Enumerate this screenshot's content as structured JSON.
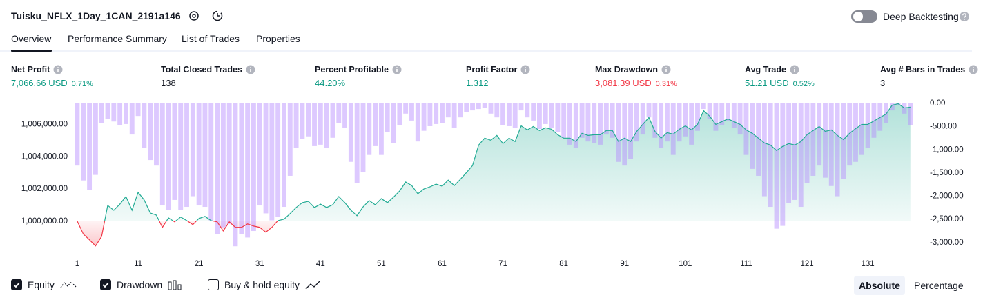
{
  "header": {
    "title": "Tuisku_NFLX_1Day_1CAN_2191a146",
    "deep_backtesting": "Deep Backtesting"
  },
  "tabs": [
    "Overview",
    "Performance Summary",
    "List of Trades",
    "Properties"
  ],
  "metrics": [
    {
      "label": "Net Profit",
      "value": "7,066.66 USD",
      "percent": "0.71%",
      "color": "#089981"
    },
    {
      "label": "Total Closed Trades",
      "value": "138",
      "color": "#131722"
    },
    {
      "label": "Percent Profitable",
      "value": "44.20%",
      "color": "#089981"
    },
    {
      "label": "Profit Factor",
      "value": "1.312",
      "color": "#089981"
    },
    {
      "label": "Max Drawdown",
      "value": "3,081.39 USD",
      "percent": "0.31%",
      "color": "#f23645"
    },
    {
      "label": "Avg Trade",
      "value": "51.21 USD",
      "percent": "0.52%",
      "color": "#089981"
    },
    {
      "label": "Avg # Bars in Trades",
      "value": "3",
      "color": "#131722"
    }
  ],
  "chart_data": {
    "type": "combo",
    "x": [
      1,
      2,
      3,
      4,
      5,
      6,
      7,
      8,
      9,
      10,
      11,
      12,
      13,
      14,
      15,
      16,
      17,
      18,
      19,
      20,
      21,
      22,
      23,
      24,
      25,
      26,
      27,
      28,
      29,
      30,
      31,
      32,
      33,
      34,
      35,
      36,
      37,
      38,
      39,
      40,
      41,
      42,
      43,
      44,
      45,
      46,
      47,
      48,
      49,
      50,
      51,
      52,
      53,
      54,
      55,
      56,
      57,
      58,
      59,
      60,
      61,
      62,
      63,
      64,
      65,
      66,
      67,
      68,
      69,
      70,
      71,
      72,
      73,
      74,
      75,
      76,
      77,
      78,
      79,
      80,
      81,
      82,
      83,
      84,
      85,
      86,
      87,
      88,
      89,
      90,
      91,
      92,
      93,
      94,
      95,
      96,
      97,
      98,
      99,
      100,
      101,
      102,
      103,
      104,
      105,
      106,
      107,
      108,
      109,
      110,
      111,
      112,
      113,
      114,
      115,
      116,
      117,
      118,
      119,
      120,
      121,
      122,
      123,
      124,
      125,
      126,
      127,
      128,
      129,
      130,
      131,
      132,
      133,
      134,
      135,
      136,
      137,
      138
    ],
    "xlim": [
      0.55,
      139.5
    ],
    "xticks": [
      1,
      11,
      21,
      31,
      41,
      51,
      61,
      71,
      81,
      91,
      101,
      111,
      121,
      131
    ],
    "ylim": [
      997900,
      1007300
    ],
    "yticks": [
      {
        "value": 1000000,
        "label": "1,000,000.00"
      },
      {
        "value": 1002000,
        "label": "1,002,000.00"
      },
      {
        "value": 1004000,
        "label": "1,004,000.00"
      },
      {
        "value": 1006000,
        "label": "1,006,000.00"
      }
    ],
    "y2lim": [
      -3270,
      0
    ],
    "y2ticks": [
      {
        "value": 0,
        "label": "0.00"
      },
      {
        "value": -500,
        "label": "-500.00"
      },
      {
        "value": -1000,
        "label": "-1,000.00"
      },
      {
        "value": -1500,
        "label": "-1,500.00"
      },
      {
        "value": -2000,
        "label": "-2,000.00"
      },
      {
        "value": -2500,
        "label": "-2,500.00"
      },
      {
        "value": -3000,
        "label": "-3,000.00"
      }
    ],
    "grid": false,
    "series": [
      {
        "name": "Equity",
        "type": "area",
        "color": "#22ab94",
        "negative_color": "#f23645",
        "values": [
          1000000,
          999200,
          998850,
          998470,
          999060,
          1000980,
          1000680,
          1001060,
          1001530,
          1000680,
          1001790,
          1001320,
          1000510,
          1000380,
          999620,
          1000210,
          999960,
          1000260,
          1000040,
          999790,
          1000170,
          1000300,
          1000040,
          999960,
          999400,
          999960,
          999620,
          999620,
          999830,
          999700,
          999620,
          999320,
          999620,
          1000040,
          1000130,
          1000470,
          1000850,
          1001150,
          1001230,
          1000850,
          1001060,
          1000850,
          1001020,
          1001530,
          1001150,
          1000680,
          1000340,
          1000890,
          1001280,
          1001020,
          1001400,
          1001150,
          1001490,
          1001870,
          1002430,
          1002210,
          1001700,
          1002000,
          1002130,
          1002300,
          1002170,
          1002550,
          1002210,
          1002600,
          1003020,
          1003450,
          1004720,
          1005150,
          1005020,
          1005320,
          1004810,
          1005150,
          1004940,
          1005910,
          1005660,
          1005870,
          1005620,
          1005790,
          1005700,
          1005360,
          1005150,
          1005150,
          1004940,
          1005450,
          1005320,
          1005360,
          1005360,
          1005620,
          1005620,
          1004940,
          1005150,
          1004940,
          1005570,
          1006000,
          1006430,
          1005570,
          1005150,
          1005490,
          1005400,
          1005700,
          1005910,
          1005660,
          1006000,
          1006850,
          1006510,
          1006000,
          1006170,
          1006340,
          1006170,
          1006000,
          1005660,
          1005450,
          1005150,
          1004850,
          1004720,
          1004380,
          1004640,
          1004810,
          1004720,
          1004940,
          1005360,
          1005620,
          1005870,
          1005570,
          1005660,
          1005320,
          1005060,
          1005450,
          1005740,
          1006000,
          1006000,
          1006210,
          1006430,
          1006640,
          1007190,
          1007280,
          1007020,
          1007070
        ]
      },
      {
        "name": "Drawdown",
        "type": "bar",
        "axis": "y2",
        "color": "rgba(179,136,255,0.45)",
        "values": [
          -1340,
          -1660,
          -1870,
          -1540,
          -420,
          -330,
          -390,
          -470,
          -445,
          -670,
          -270,
          -960,
          -1220,
          -1340,
          -2200,
          -2300,
          -2080,
          -2300,
          -2230,
          -2000,
          -2200,
          -2230,
          -2520,
          -2820,
          -2670,
          -2600,
          -3080,
          -2820,
          -2890,
          -2750,
          -2200,
          -2370,
          -2520,
          -2450,
          -2230,
          -1560,
          -960,
          -770,
          -710,
          -920,
          -890,
          -960,
          -740,
          -420,
          -520,
          -1260,
          -1710,
          -1480,
          -1110,
          -920,
          -1110,
          -620,
          -860,
          -470,
          -220,
          -370,
          -820,
          -590,
          -490,
          -445,
          -420,
          -300,
          -520,
          -300,
          -190,
          -150,
          -120,
          -90,
          -220,
          -300,
          -470,
          -490,
          -530,
          -150,
          -300,
          -370,
          -550,
          -445,
          -520,
          -620,
          -740,
          -890,
          -960,
          -740,
          -820,
          -860,
          -890,
          -670,
          -740,
          -1260,
          -1340,
          -1190,
          -820,
          -670,
          -300,
          -740,
          -960,
          -820,
          -1110,
          -820,
          -710,
          -890,
          -590,
          -120,
          -330,
          -590,
          -470,
          -370,
          -520,
          -670,
          -1110,
          -1410,
          -1560,
          -2000,
          -2230,
          -2700,
          -2640,
          -2150,
          -2080,
          -2230,
          -1710,
          -1560,
          -1340,
          -1600,
          -1780,
          -2000,
          -1630,
          -1340,
          -1260,
          -1110,
          -960,
          -740,
          -590,
          -420,
          -150,
          -40,
          -220,
          -470
        ]
      }
    ]
  },
  "controls": {
    "buy_hold": "Buy & hold equity",
    "absolute": "Absolute",
    "percentage": "Percentage"
  }
}
